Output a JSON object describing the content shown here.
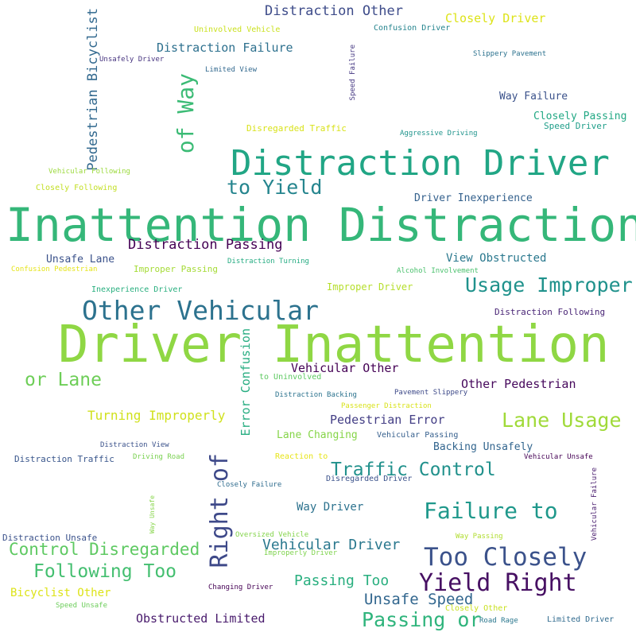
{
  "words": [
    {
      "text": "Driver Inattention",
      "color": "#8fd744"
    },
    {
      "text": "Inattention Distraction",
      "color": "#35b779"
    },
    {
      "text": "Distraction Driver",
      "color": "#21a685"
    },
    {
      "text": "Other Vehicular",
      "color": "#2c728e"
    },
    {
      "text": "Too Closely",
      "color": "#3b528b"
    },
    {
      "text": "Yield Right",
      "color": "#471063"
    },
    {
      "text": "Failure to",
      "color": "#1f988b"
    },
    {
      "text": "Right of",
      "color": "#3e4989"
    },
    {
      "text": "of Way",
      "color": "#3bbb75"
    },
    {
      "text": "Usage Improper",
      "color": "#20928c"
    },
    {
      "text": "Lane Usage",
      "color": "#a0da39"
    },
    {
      "text": "Traffic Control",
      "color": "#21918c"
    },
    {
      "text": "to Yield",
      "color": "#25858e"
    },
    {
      "text": "Passing or",
      "color": "#2fb47c"
    },
    {
      "text": "Following Too",
      "color": "#44bf70"
    },
    {
      "text": "Control Disregarded",
      "color": "#5ec962"
    },
    {
      "text": "or Lane",
      "color": "#6ece58"
    },
    {
      "text": "Pedestrian Bicyclist",
      "color": "#31688e"
    },
    {
      "text": "Distraction Other",
      "color": "#3e4c8a"
    },
    {
      "text": "Vehicular Driver",
      "color": "#2a788e"
    },
    {
      "text": "Unsafe Speed",
      "color": "#31668e"
    },
    {
      "text": "Passing Too",
      "color": "#29af7f"
    },
    {
      "text": "Distraction Passing",
      "color": "#440154"
    },
    {
      "text": "Turning Improperly",
      "color": "#d0e11c"
    },
    {
      "text": "Vehicular Other",
      "color": "#440154"
    },
    {
      "text": "Other Pedestrian",
      "color": "#46085c"
    },
    {
      "text": "Pedestrian Error",
      "color": "#433e85"
    },
    {
      "text": "Obstructed Limited",
      "color": "#481a6c"
    },
    {
      "text": "Distraction Failure",
      "color": "#2d708e"
    },
    {
      "text": "Closely Driver",
      "color": "#dde318"
    },
    {
      "text": "Error Confusion",
      "color": "#27ad81"
    },
    {
      "text": "Way Driver",
      "color": "#2c728e"
    },
    {
      "text": "Unsafe Lane",
      "color": "#3b528b"
    },
    {
      "text": "View Obstructed",
      "color": "#2a788e"
    },
    {
      "text": "Driver Inexperience",
      "color": "#34618d"
    },
    {
      "text": "Bicyclist Other",
      "color": "#dde318"
    },
    {
      "text": "Lane Changing",
      "color": "#86d549"
    },
    {
      "text": "Backing Unsafely",
      "color": "#32658e"
    },
    {
      "text": "Way Failure",
      "color": "#3b528b"
    },
    {
      "text": "Closely Passing",
      "color": "#22a884"
    },
    {
      "text": "Improper Driver",
      "color": "#b5de2b"
    },
    {
      "text": "Disregarded Traffic",
      "color": "#d8e219"
    },
    {
      "text": "Speed Driver",
      "color": "#1f9e89"
    },
    {
      "text": "Improper Passing",
      "color": "#a5db36"
    },
    {
      "text": "Distraction Following",
      "color": "#482475"
    },
    {
      "text": "Distraction Traffic",
      "color": "#39568c"
    },
    {
      "text": "Distraction Unsafe",
      "color": "#3b528b"
    },
    {
      "text": "Disregarded Driver",
      "color": "#3b528b"
    },
    {
      "text": "Vehicular Passing",
      "color": "#355f8d"
    },
    {
      "text": "Uninvolved Vehicle",
      "color": "#cae11f"
    },
    {
      "text": "Confusion Driver",
      "color": "#25848e"
    },
    {
      "text": "Unsafely Driver",
      "color": "#46337f"
    },
    {
      "text": "Limited View",
      "color": "#31688e"
    },
    {
      "text": "Slippery Pavement",
      "color": "#2c728e"
    },
    {
      "text": "Speed Failure",
      "color": "#453882"
    },
    {
      "text": "Aggressive Driving",
      "color": "#1f948c"
    },
    {
      "text": "Vehicular Following",
      "color": "#9bd93c"
    },
    {
      "text": "Closely Following",
      "color": "#c2df23"
    },
    {
      "text": "Confusion Pedestrian",
      "color": "#e5e419"
    },
    {
      "text": "Distraction Turning",
      "color": "#25ac82"
    },
    {
      "text": "Alcohol Involvement",
      "color": "#4ac16d"
    },
    {
      "text": "Inexperience Driver",
      "color": "#29af7f"
    },
    {
      "text": "to Uninvolved",
      "color": "#5ec962"
    },
    {
      "text": "Distraction Backing",
      "color": "#2c738e"
    },
    {
      "text": "Pavement Slippery",
      "color": "#3e4a89"
    },
    {
      "text": "Passenger Distraction",
      "color": "#d8e219"
    },
    {
      "text": "Distraction View",
      "color": "#3b528b"
    },
    {
      "text": "Driving Road",
      "color": "#7ad151"
    },
    {
      "text": "Reaction to",
      "color": "#e7e419"
    },
    {
      "text": "Vehicular Unsafe",
      "color": "#440154"
    },
    {
      "text": "Closely Failure",
      "color": "#2f6c8e"
    },
    {
      "text": "Way Unsafe",
      "color": "#86d549"
    },
    {
      "text": "Oversized Vehicle",
      "color": "#84d44b"
    },
    {
      "text": "Improperly Driver",
      "color": "#7fd34e"
    },
    {
      "text": "Way Passing",
      "color": "#b0dd2f"
    },
    {
      "text": "Vehicular Failure",
      "color": "#481c6e"
    },
    {
      "text": "Changing Driver",
      "color": "#440154"
    },
    {
      "text": "Speed Unsafe",
      "color": "#6ccd5a"
    },
    {
      "text": "Closely Other",
      "color": "#c8e020"
    },
    {
      "text": "Road Rage",
      "color": "#2a778e"
    },
    {
      "text": "Limited Driver",
      "color": "#306a8e"
    }
  ]
}
